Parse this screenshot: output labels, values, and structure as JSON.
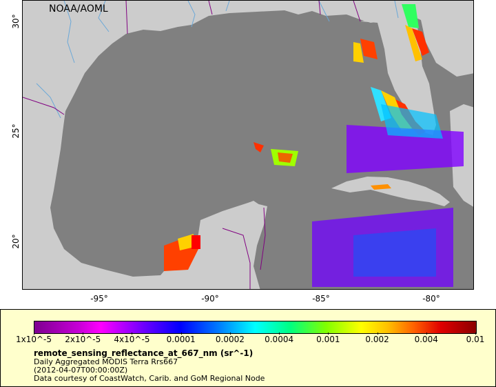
{
  "map": {
    "attribution": "NOAA/AOML",
    "y_ticks": [
      "30°",
      "25°",
      "20°"
    ],
    "x_ticks": [
      "-95°",
      "-90°",
      "-85°",
      "-80°"
    ],
    "colors": {
      "ocean": "#808080",
      "land": "#cccccc",
      "borders": "#800080",
      "rivers": "#6aa8d8"
    }
  },
  "legend": {
    "scale_labels": [
      "1x10^-5",
      "2x10^-5",
      "4x10^-5",
      "0.0001",
      "0.0002",
      "0.0004",
      "0.001",
      "0.002",
      "0.004",
      "0.01"
    ],
    "variable": "remote_sensing_reflectance_at_667_nm (sr^-1)",
    "source": "Daily Aggregated MODIS Terra Rrs667",
    "time": "(2012-04-07T00:00:00Z)",
    "credit": "Data courtesy of CoastWatch, Carib. and GoM Regional Node"
  }
}
